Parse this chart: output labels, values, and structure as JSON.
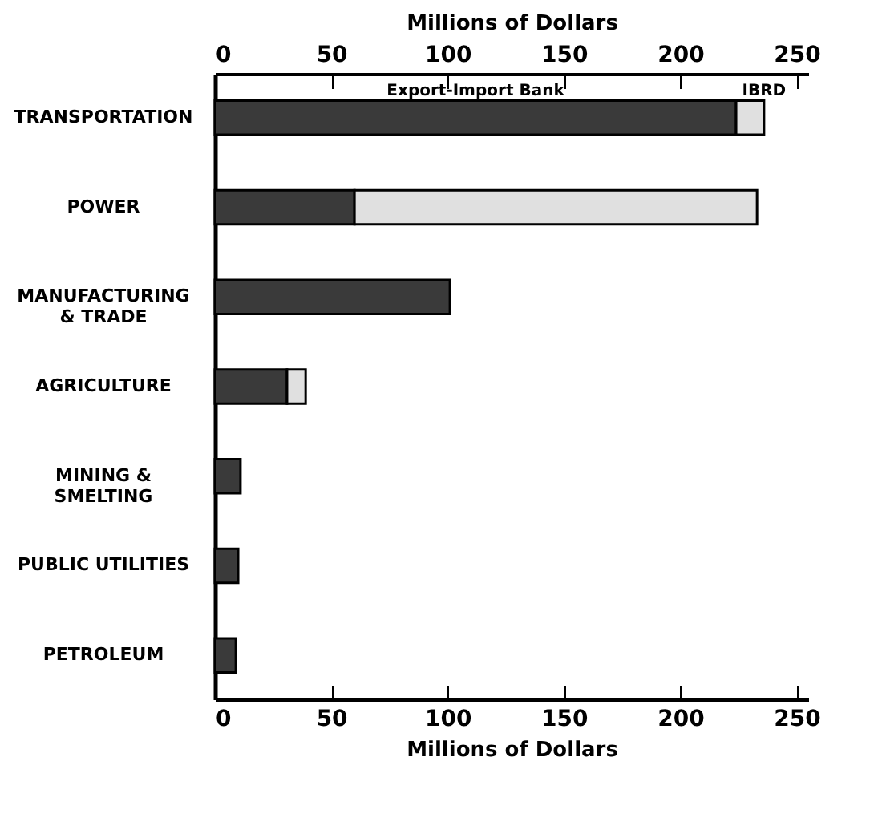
{
  "chart_data": {
    "type": "bar",
    "orientation": "horizontal",
    "stacked": true,
    "categories": [
      "TRANSPORTATION",
      "POWER",
      "MANUFACTURING\n& TRADE",
      "AGRICULTURE",
      "MINING &\nSMELTING",
      "PUBLIC UTILITIES",
      "PETROLEUM"
    ],
    "series": [
      {
        "name": "Export-Import Bank",
        "color": "#3a3a3a",
        "values": [
          224,
          60,
          101,
          31,
          11,
          10,
          9
        ]
      },
      {
        "name": "IBRD",
        "color": "#e0e0e0",
        "values": [
          12,
          173,
          null,
          8,
          null,
          null,
          null
        ]
      }
    ],
    "xlim": [
      0,
      255
    ],
    "xticks": [
      0,
      50,
      100,
      150,
      200,
      250
    ],
    "xlabel": "Millions of Dollars",
    "x2lim": [
      0,
      255
    ],
    "x2ticks": [
      0,
      50,
      100,
      150,
      200,
      250
    ],
    "x2label": "Millions of Dollars",
    "grid": false,
    "legend": false
  }
}
